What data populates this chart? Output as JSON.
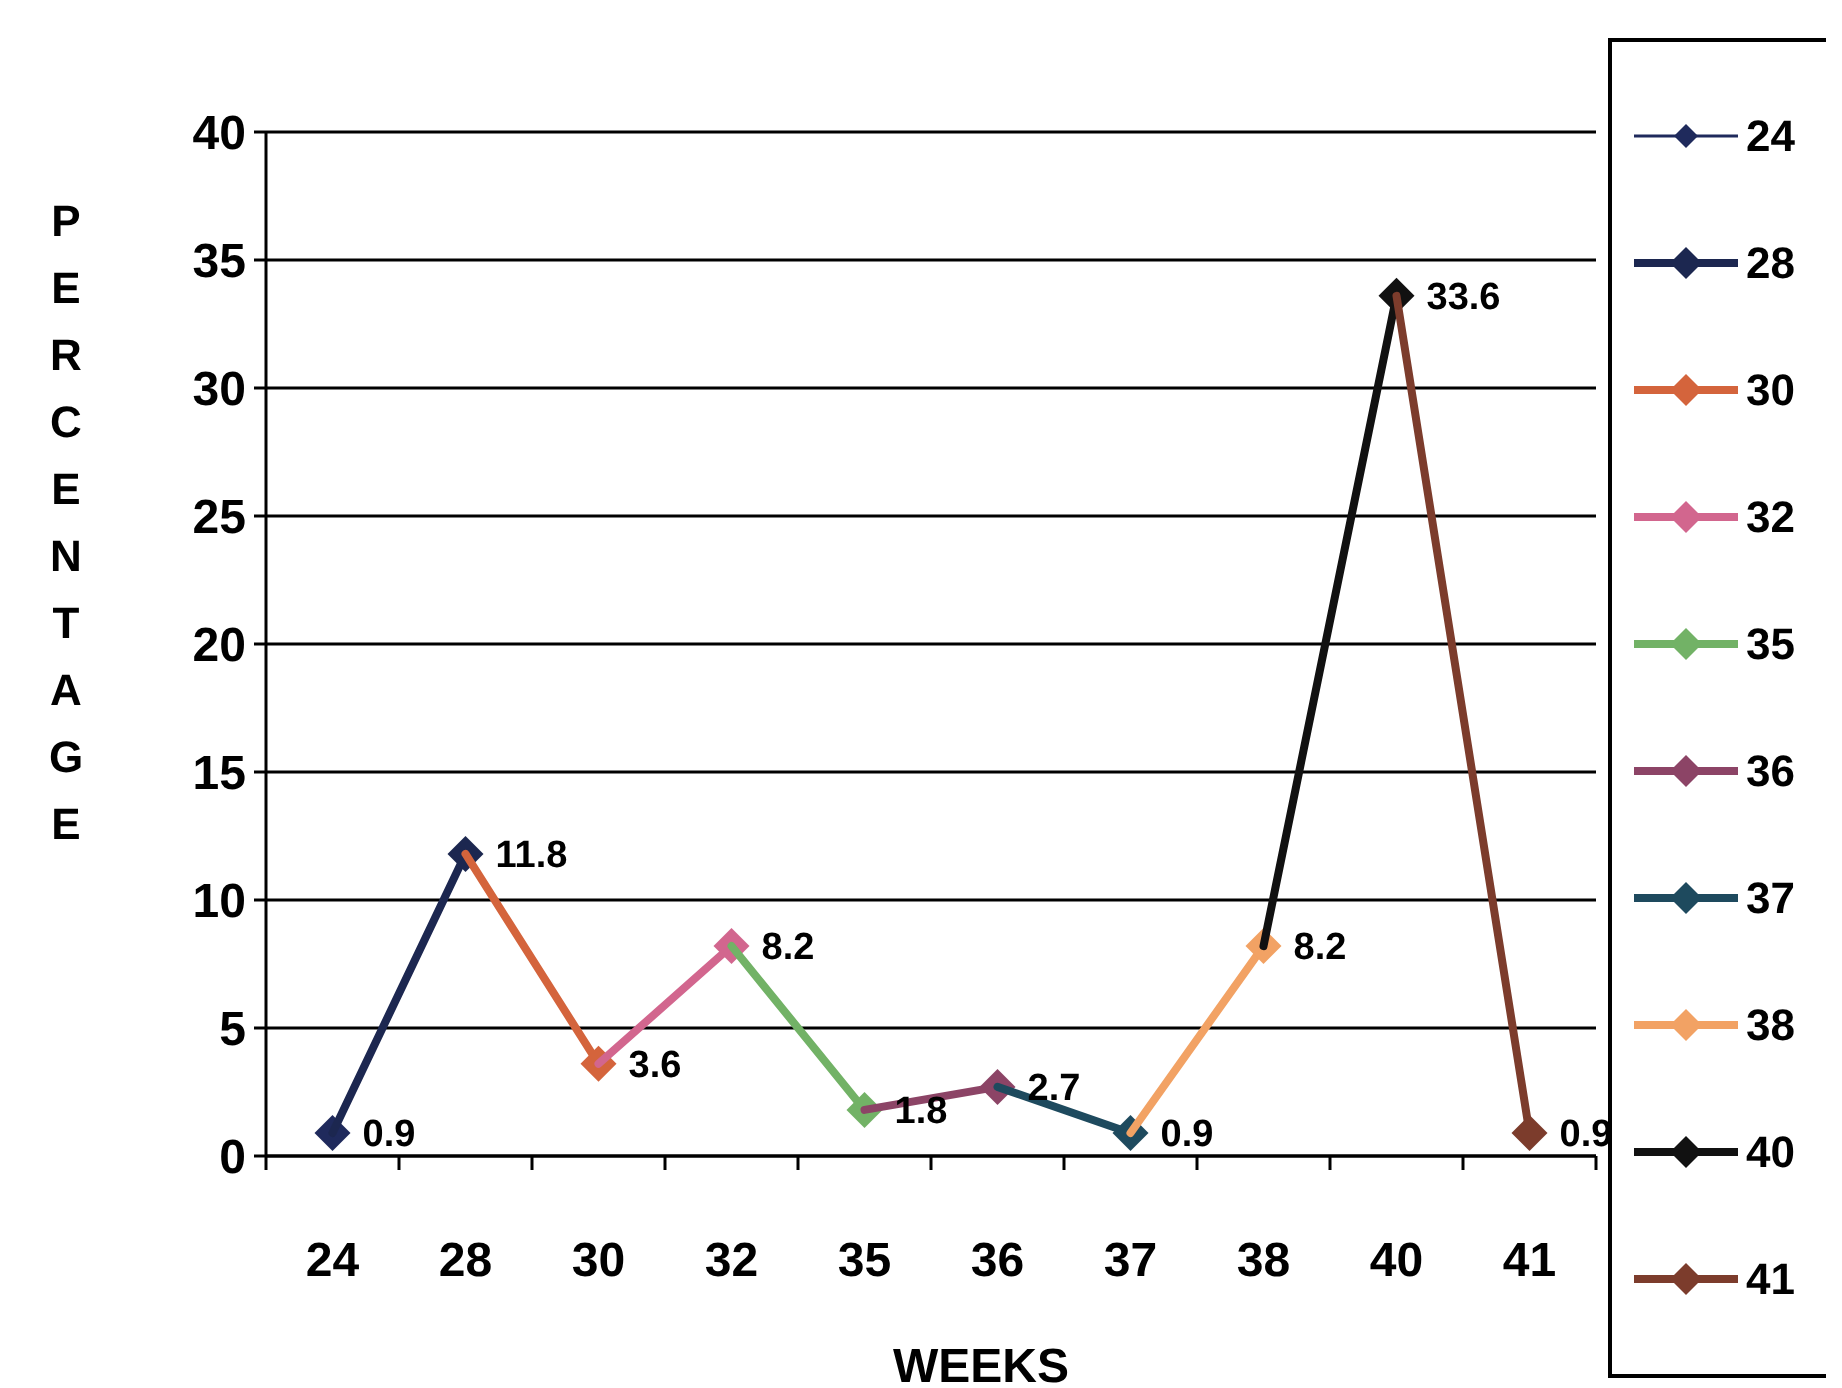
{
  "chart_data": {
    "type": "line",
    "xlabel": "WEEKS",
    "ylabel": "PERCENTAGE",
    "categories": [
      "24",
      "28",
      "30",
      "32",
      "35",
      "36",
      "37",
      "38",
      "40",
      "41"
    ],
    "series": [
      {
        "name": "24",
        "color": "#1f2a5c",
        "values": [
          0.9,
          null,
          null,
          null,
          null,
          null,
          null,
          null,
          null,
          null
        ],
        "value_labels": [
          "0.9",
          null,
          null,
          null,
          null,
          null,
          null,
          null,
          null,
          null
        ]
      },
      {
        "name": "28",
        "color": "#1c2750",
        "values": [
          0.9,
          11.8,
          null,
          null,
          null,
          null,
          null,
          null,
          null,
          null
        ],
        "value_labels": [
          null,
          "11.8",
          null,
          null,
          null,
          null,
          null,
          null,
          null,
          null
        ]
      },
      {
        "name": "30",
        "color": "#d4643c",
        "values": [
          null,
          11.8,
          3.6,
          null,
          null,
          null,
          null,
          null,
          null,
          null
        ],
        "value_labels": [
          null,
          null,
          "3.6",
          null,
          null,
          null,
          null,
          null,
          null,
          null
        ]
      },
      {
        "name": "32",
        "color": "#d2668e",
        "values": [
          null,
          null,
          3.6,
          8.2,
          null,
          null,
          null,
          null,
          null,
          null
        ],
        "value_labels": [
          null,
          null,
          null,
          "8.2",
          null,
          null,
          null,
          null,
          null,
          null
        ]
      },
      {
        "name": "35",
        "color": "#72b266",
        "values": [
          null,
          null,
          null,
          8.2,
          1.8,
          null,
          null,
          null,
          null,
          null
        ],
        "value_labels": [
          null,
          null,
          null,
          null,
          "1.8",
          null,
          null,
          null,
          null,
          null
        ]
      },
      {
        "name": "36",
        "color": "#8c4466",
        "values": [
          null,
          null,
          null,
          null,
          1.8,
          2.7,
          null,
          null,
          null,
          null
        ],
        "value_labels": [
          null,
          null,
          null,
          null,
          null,
          "2.7",
          null,
          null,
          null,
          null
        ]
      },
      {
        "name": "37",
        "color": "#1e4a5e",
        "values": [
          null,
          null,
          null,
          null,
          null,
          2.7,
          0.9,
          null,
          null,
          null
        ],
        "value_labels": [
          null,
          null,
          null,
          null,
          null,
          null,
          "0.9",
          null,
          null,
          null
        ]
      },
      {
        "name": "38",
        "color": "#f2a264",
        "values": [
          null,
          null,
          null,
          null,
          null,
          null,
          0.9,
          8.2,
          null,
          null
        ],
        "value_labels": [
          null,
          null,
          null,
          null,
          null,
          null,
          null,
          "8.2",
          null,
          null
        ]
      },
      {
        "name": "40",
        "color": "#111111",
        "values": [
          null,
          null,
          null,
          null,
          null,
          null,
          null,
          8.2,
          33.6,
          null
        ],
        "value_labels": [
          null,
          null,
          null,
          null,
          null,
          null,
          null,
          null,
          "33.6",
          null
        ]
      },
      {
        "name": "41",
        "color": "#7c3c2c",
        "values": [
          null,
          null,
          null,
          null,
          null,
          null,
          null,
          null,
          33.6,
          0.9
        ],
        "value_labels": [
          null,
          null,
          null,
          null,
          null,
          null,
          null,
          null,
          null,
          "0.9"
        ]
      }
    ],
    "ylim": [
      0,
      40
    ],
    "yticks": [
      0,
      5,
      10,
      15,
      20,
      25,
      30,
      35,
      40
    ],
    "grid": "y",
    "legend": "right",
    "marker": "diamond",
    "line_style": "solid"
  }
}
